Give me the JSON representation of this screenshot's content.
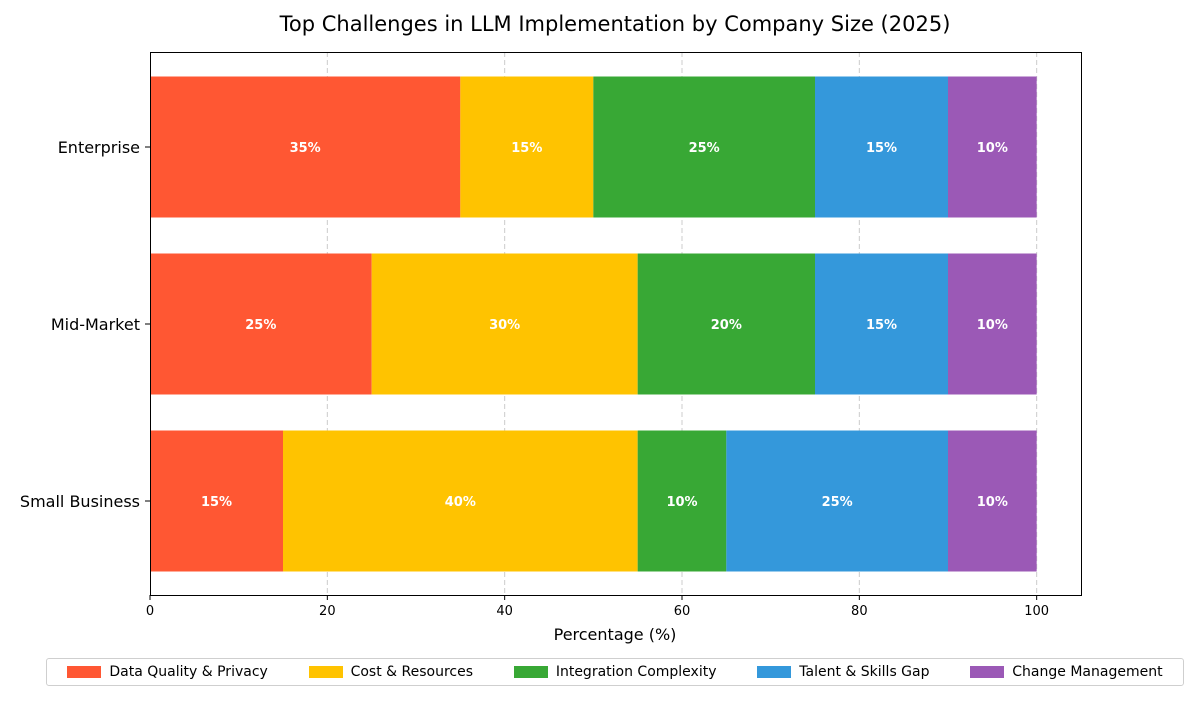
{
  "chart_data": {
    "type": "bar",
    "orientation": "horizontal",
    "stacked": true,
    "title": "Top Challenges in LLM Implementation by Company Size (2025)",
    "xlabel": "Percentage (%)",
    "ylabel": "",
    "xlim": [
      0,
      105
    ],
    "xticks": [
      0,
      20,
      40,
      60,
      80,
      100
    ],
    "grid": "x-dashed",
    "legend_position": "bottom-center",
    "categories": [
      "Enterprise",
      "Mid-Market",
      "Small Business"
    ],
    "series": [
      {
        "name": "Data Quality & Privacy",
        "color": "#ff5733",
        "values": [
          35,
          25,
          15
        ]
      },
      {
        "name": "Cost & Resources",
        "color": "#ffc300",
        "values": [
          15,
          30,
          40
        ]
      },
      {
        "name": "Integration Complexity",
        "color": "#38a835",
        "values": [
          25,
          20,
          10
        ]
      },
      {
        "name": "Talent & Skills Gap",
        "color": "#3498db",
        "values": [
          15,
          15,
          25
        ]
      },
      {
        "name": "Change Management",
        "color": "#9b59b6",
        "values": [
          10,
          10,
          10
        ]
      }
    ]
  }
}
